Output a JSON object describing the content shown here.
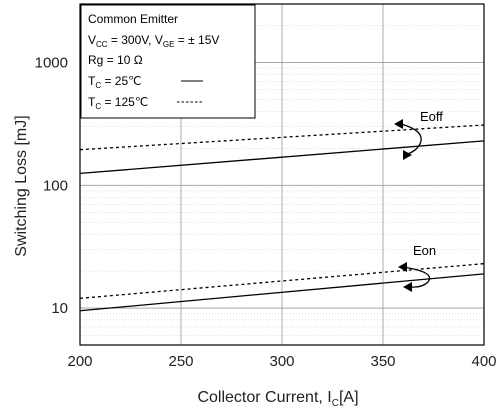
{
  "chart_data": {
    "type": "line",
    "x_axis": {
      "label_main": "Collector Current, I",
      "label_sub": "C",
      "label_tail": "[A]",
      "range": [
        200,
        400
      ],
      "ticks": [
        200,
        250,
        300,
        350,
        400
      ],
      "tick_labels": [
        "200",
        "250",
        "300",
        "350",
        "400"
      ],
      "grid": true
    },
    "y_axis": {
      "label": "Switching Loss  [mJ]",
      "scale": "log",
      "range": [
        5,
        3000
      ],
      "ticks": [
        10,
        100,
        1000
      ],
      "tick_labels": [
        "10",
        "100",
        "1000"
      ],
      "grid": true
    },
    "legend": {
      "placement": "top-left",
      "line1": "Common Emitter",
      "line2": {
        "v1": "V",
        "s1": "CC",
        "mid": " = 300V, V",
        "s2": "GE",
        "end": " = ±  15V"
      },
      "line3": "Rg = 10 Ω",
      "line4": {
        "t": "T",
        "s": "C",
        "end": " =   25℃"
      },
      "line5": {
        "t": "T",
        "s": "C",
        "end": " = 125℃"
      }
    },
    "series": [
      {
        "group": "Eoff",
        "style": "solid",
        "tc": 25,
        "x": [
          200,
          400
        ],
        "y": [
          125,
          230
        ]
      },
      {
        "group": "Eoff",
        "style": "dashed",
        "tc": 125,
        "x": [
          200,
          400
        ],
        "y": [
          195,
          310
        ]
      },
      {
        "group": "Eon",
        "style": "solid",
        "tc": 25,
        "x": [
          200,
          400
        ],
        "y": [
          9.5,
          19
        ]
      },
      {
        "group": "Eon",
        "style": "dashed",
        "tc": 125,
        "x": [
          200,
          400
        ],
        "y": [
          12,
          23
        ]
      }
    ],
    "annotations": [
      {
        "text": "Eoff",
        "at_x": 377,
        "at_y": 330
      },
      {
        "text": "Eon",
        "at_x": 377,
        "at_y": 27
      }
    ]
  }
}
